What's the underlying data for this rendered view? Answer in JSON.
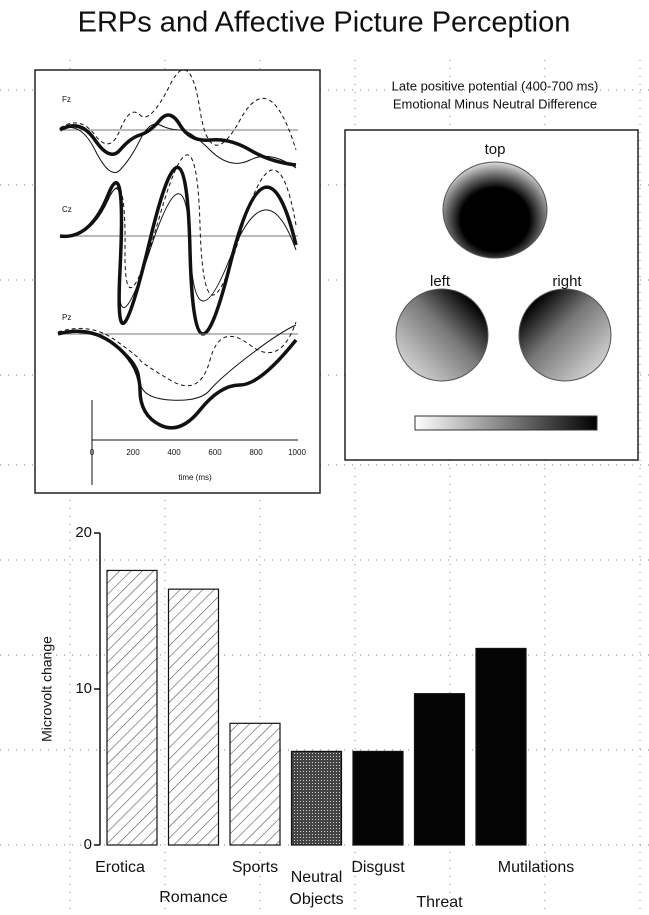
{
  "title": "ERPs and Affective Picture Perception",
  "erp_panel": {
    "channels": [
      "Fz",
      "Cz",
      "Pz"
    ],
    "time_ticks": [
      "0",
      "200",
      "400",
      "600",
      "800",
      "1000"
    ],
    "time_label": "time (ms)"
  },
  "topo_panel": {
    "title": "Late positive potential (400-700 ms)",
    "subtitle": "Emotional Minus Neutral Difference",
    "views": [
      "top",
      "left",
      "right"
    ]
  },
  "chart_data": {
    "type": "bar",
    "y_label": "Microvolt change",
    "categories": [
      "Erotica",
      "Romance",
      "Sports",
      "Neutral Objects",
      "Disgust",
      "Threat",
      "Mutilations"
    ],
    "values": [
      17.6,
      16.4,
      7.8,
      6.0,
      6.0,
      9.7,
      12.6
    ],
    "fills": [
      "hatch",
      "hatch",
      "hatch",
      "stipple",
      "solid",
      "solid",
      "solid"
    ],
    "ylim": [
      0,
      20
    ],
    "yticks": [
      0,
      10,
      20
    ]
  }
}
